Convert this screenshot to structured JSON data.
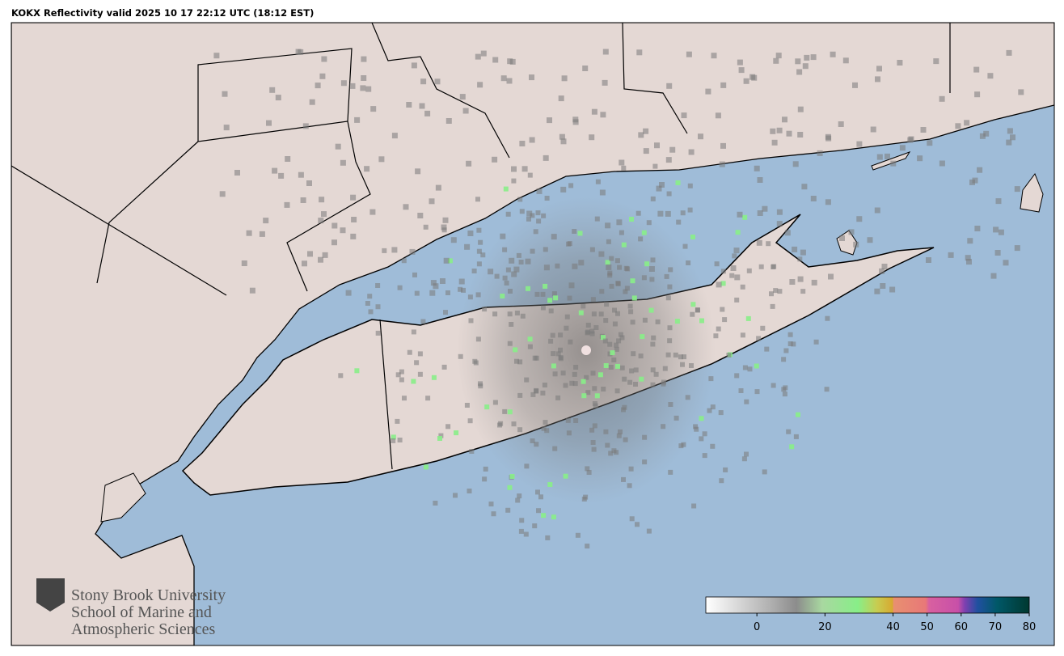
{
  "title": "KOKX Reflectivity valid 2025 10 17 22:12 UTC (18:12 EST)",
  "logo": {
    "lines": [
      "Stony Brook University",
      "School of Marine and",
      "Atmospheric Sciences"
    ]
  },
  "colorbar": {
    "lim": [
      -15,
      80
    ],
    "ticks": [
      0,
      20,
      40,
      50,
      60,
      70,
      80
    ]
  }
}
